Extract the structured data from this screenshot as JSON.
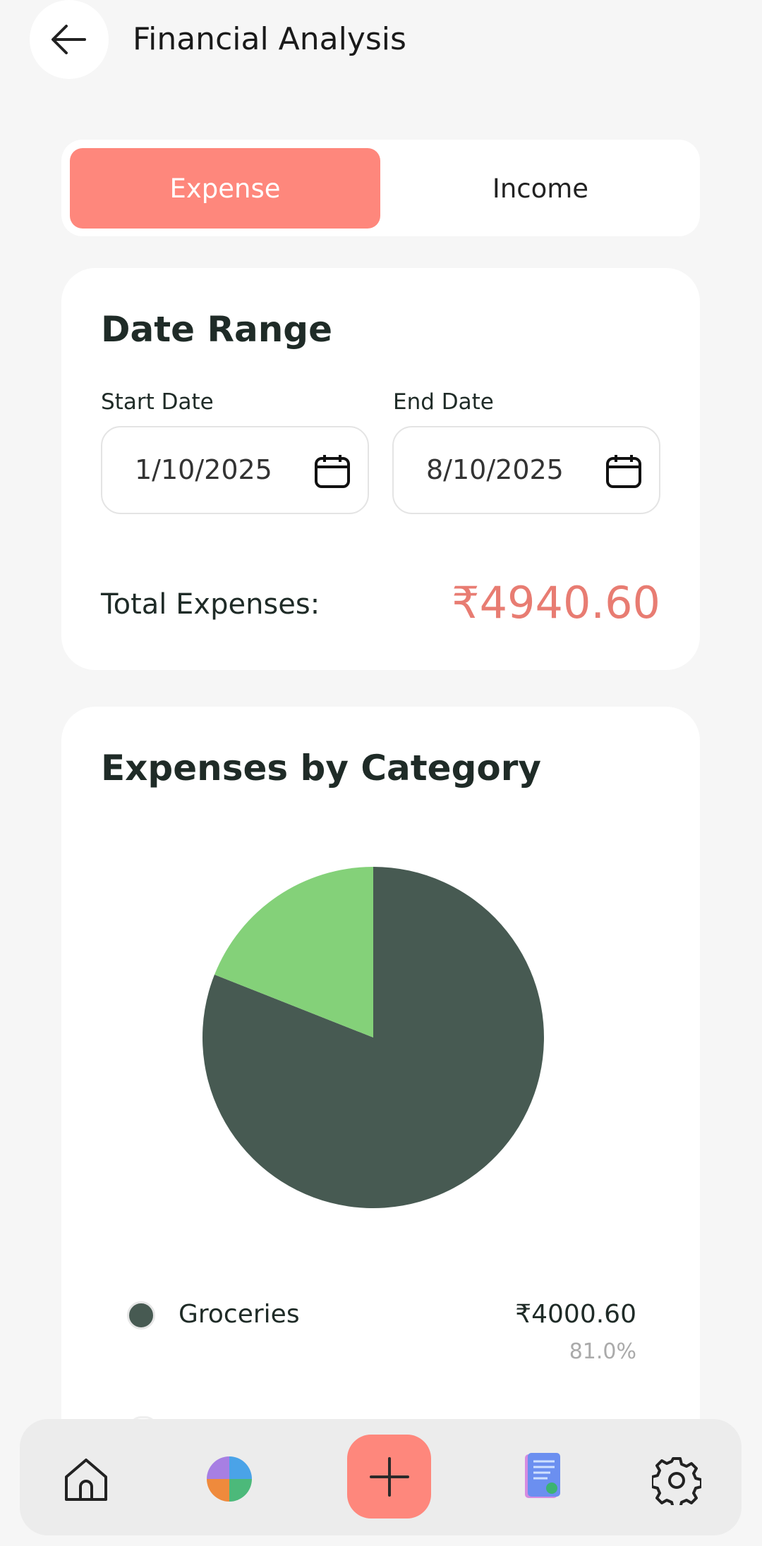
{
  "header": {
    "title": "Financial Analysis"
  },
  "tabs": [
    "Expense",
    "Income"
  ],
  "date_range": {
    "title": "Date Range",
    "start_label": "Start Date",
    "start_value": "1/10/2025",
    "end_label": "End Date",
    "end_value": "8/10/2025",
    "total_label": "Total Expenses:",
    "total_value": "₹4940.60"
  },
  "chart_data": {
    "type": "pie",
    "title": "Expenses by Category",
    "categories": [
      "Groceries",
      null
    ],
    "values": [
      81.0,
      19.0
    ],
    "value_labels": [
      "81.0%",
      null
    ],
    "amounts": [
      "₹4000.60",
      null
    ],
    "colors": [
      "#475a52",
      "#84d179"
    ]
  }
}
